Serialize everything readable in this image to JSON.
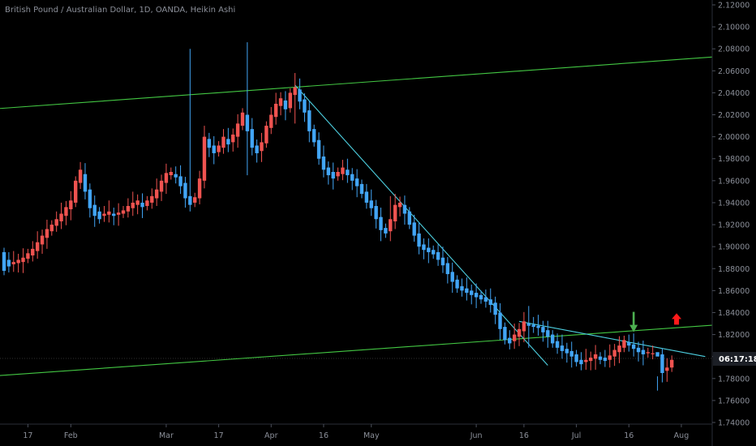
{
  "chart_data": {
    "type": "candlestick",
    "title": "British Pound / Australian Dollar, 1D, OANDA, Heikin Ashi",
    "x_tick_labels": [
      "17",
      "Feb",
      "Mar",
      "17",
      "Apr",
      "16",
      "May",
      "Jun",
      "16",
      "Jul",
      "16",
      "Aug"
    ],
    "y_tick_labels": [
      "2.12000",
      "2.10000",
      "2.08000",
      "2.06000",
      "2.04000",
      "2.02000",
      "2.00000",
      "1.98000",
      "1.96000",
      "1.94000",
      "1.92000",
      "1.90000",
      "1.88000",
      "1.86000",
      "1.84000",
      "1.82000",
      "1.80000",
      "1.78000",
      "1.76000",
      "1.74000"
    ],
    "ylim": [
      1.74,
      2.12
    ],
    "countdown_label": "06:17:18",
    "colors": {
      "background": "#000000",
      "bull": "#ef5350",
      "bear": "#42a5f5",
      "channel": "#43c743",
      "trendline": "#4dd0e1",
      "down_arrow": "#4caf50",
      "up_arrow": "#ff1a1a",
      "axis_text": "#8b8f99"
    },
    "candles_open_close": [
      [
        1.895,
        1.878
      ],
      [
        1.888,
        1.882
      ],
      [
        1.884,
        1.886
      ],
      [
        1.885,
        1.888
      ],
      [
        1.886,
        1.89
      ],
      [
        1.889,
        1.894
      ],
      [
        1.892,
        1.898
      ],
      [
        1.896,
        1.904
      ],
      [
        1.902,
        1.91
      ],
      [
        1.908,
        1.916
      ],
      [
        1.914,
        1.92
      ],
      [
        1.919,
        1.925
      ],
      [
        1.923,
        1.93
      ],
      [
        1.928,
        1.936
      ],
      [
        1.934,
        1.942
      ],
      [
        1.94,
        1.96
      ],
      [
        1.958,
        1.97
      ],
      [
        1.966,
        1.95
      ],
      [
        1.952,
        1.935
      ],
      [
        1.938,
        1.928
      ],
      [
        1.932,
        1.925
      ],
      [
        1.928,
        1.93
      ],
      [
        1.929,
        1.932
      ],
      [
        1.93,
        1.928
      ],
      [
        1.929,
        1.931
      ],
      [
        1.93,
        1.933
      ],
      [
        1.932,
        1.937
      ],
      [
        1.935,
        1.94
      ],
      [
        1.938,
        1.942
      ],
      [
        1.94,
        1.936
      ],
      [
        1.937,
        1.942
      ],
      [
        1.94,
        1.946
      ],
      [
        1.944,
        1.952
      ],
      [
        1.95,
        1.96
      ],
      [
        1.958,
        1.967
      ],
      [
        1.965,
        1.968
      ],
      [
        1.966,
        1.963
      ],
      [
        1.964,
        1.955
      ],
      [
        1.958,
        1.944
      ],
      [
        1.946,
        1.938
      ],
      [
        1.94,
        1.945
      ],
      [
        1.944,
        1.962
      ],
      [
        1.96,
        2.0
      ],
      [
        1.998,
        1.99
      ],
      [
        1.992,
        1.985
      ],
      [
        1.986,
        1.992
      ],
      [
        1.99,
        2.0
      ],
      [
        1.998,
        1.993
      ],
      [
        1.995,
        2.002
      ],
      [
        2.0,
        2.012
      ],
      [
        2.01,
        2.022
      ],
      [
        2.02,
        2.005
      ],
      [
        2.007,
        1.99
      ],
      [
        1.992,
        1.985
      ],
      [
        1.987,
        1.995
      ],
      [
        1.994,
        2.01
      ],
      [
        2.008,
        2.02
      ],
      [
        2.018,
        2.03
      ],
      [
        2.028,
        2.035
      ],
      [
        2.033,
        2.025
      ],
      [
        2.026,
        2.04
      ],
      [
        2.038,
        2.045
      ],
      [
        2.043,
        2.032
      ],
      [
        2.034,
        2.022
      ],
      [
        2.024,
        2.005
      ],
      [
        2.007,
        1.995
      ],
      [
        1.997,
        1.98
      ],
      [
        1.982,
        1.97
      ],
      [
        1.972,
        1.965
      ],
      [
        1.968,
        1.962
      ],
      [
        1.964,
        1.968
      ],
      [
        1.966,
        1.972
      ],
      [
        1.97,
        1.965
      ],
      [
        1.966,
        1.96
      ],
      [
        1.962,
        1.955
      ],
      [
        1.957,
        1.948
      ],
      [
        1.95,
        1.94
      ],
      [
        1.942,
        1.935
      ],
      [
        1.937,
        1.925
      ],
      [
        1.927,
        1.915
      ],
      [
        1.917,
        1.912
      ],
      [
        1.914,
        1.925
      ],
      [
        1.923,
        1.938
      ],
      [
        1.936,
        1.94
      ],
      [
        1.938,
        1.93
      ],
      [
        1.932,
        1.92
      ],
      [
        1.922,
        1.91
      ],
      [
        1.912,
        1.9
      ],
      [
        1.902,
        1.897
      ],
      [
        1.899,
        1.895
      ],
      [
        1.897,
        1.893
      ],
      [
        1.895,
        1.888
      ],
      [
        1.89,
        1.883
      ],
      [
        1.885,
        1.875
      ],
      [
        1.877,
        1.868
      ],
      [
        1.87,
        1.862
      ],
      [
        1.864,
        1.86
      ],
      [
        1.862,
        1.858
      ],
      [
        1.86,
        1.856
      ],
      [
        1.858,
        1.854
      ],
      [
        1.856,
        1.852
      ],
      [
        1.854,
        1.85
      ],
      [
        1.852,
        1.847
      ],
      [
        1.849,
        1.838
      ],
      [
        1.84,
        1.825
      ],
      [
        1.827,
        1.815
      ],
      [
        1.817,
        1.812
      ],
      [
        1.814,
        1.82
      ],
      [
        1.818,
        1.825
      ],
      [
        1.823,
        1.832
      ],
      [
        1.83,
        1.828
      ],
      [
        1.829,
        1.827
      ],
      [
        1.828,
        1.826
      ],
      [
        1.827,
        1.822
      ],
      [
        1.824,
        1.818
      ],
      [
        1.82,
        1.812
      ],
      [
        1.814,
        1.808
      ],
      [
        1.81,
        1.805
      ],
      [
        1.807,
        1.803
      ],
      [
        1.805,
        1.8
      ],
      [
        1.802,
        1.795
      ],
      [
        1.797,
        1.793
      ],
      [
        1.795,
        1.797
      ],
      [
        1.796,
        1.799
      ],
      [
        1.798,
        1.802
      ],
      [
        1.8,
        1.797
      ],
      [
        1.799,
        1.796
      ],
      [
        1.797,
        1.801
      ],
      [
        1.8,
        1.806
      ],
      [
        1.804,
        1.81
      ],
      [
        1.808,
        1.815
      ],
      [
        1.813,
        1.81
      ],
      [
        1.811,
        1.807
      ],
      [
        1.808,
        1.804
      ],
      [
        1.806,
        1.802
      ],
      [
        1.803,
        1.804
      ],
      [
        1.803,
        1.803
      ],
      [
        1.804,
        1.8
      ],
      [
        1.802,
        1.785
      ],
      [
        1.787,
        1.79
      ],
      [
        1.79,
        1.797
      ]
    ],
    "high_low_extensions": {
      "39": [
        2.08,
        1.932
      ],
      "51": [
        2.086,
        1.965
      ],
      "61": [
        2.058,
        2.012
      ],
      "81": [
        1.946,
        1.905
      ],
      "110": [
        1.846,
        1.808
      ],
      "137": [
        1.782,
        1.769
      ]
    },
    "lines": {
      "upper_channel": {
        "from": [
          0,
          2.026
        ],
        "to": [
          150,
          2.073
        ]
      },
      "lower_channel": {
        "from": [
          0,
          1.783
        ],
        "to": [
          150,
          1.829
        ]
      },
      "downtrend_1": {
        "from": [
          61,
          2.047
        ],
        "to": [
          114,
          1.792
        ]
      },
      "downtrend_2": {
        "from": [
          108,
          1.832
        ],
        "to": [
          147,
          1.8
        ]
      }
    },
    "markers": [
      {
        "type": "down_arrow",
        "index": 132,
        "value": 1.82
      },
      {
        "type": "up_arrow",
        "index": 141,
        "value": 1.832
      }
    ]
  }
}
